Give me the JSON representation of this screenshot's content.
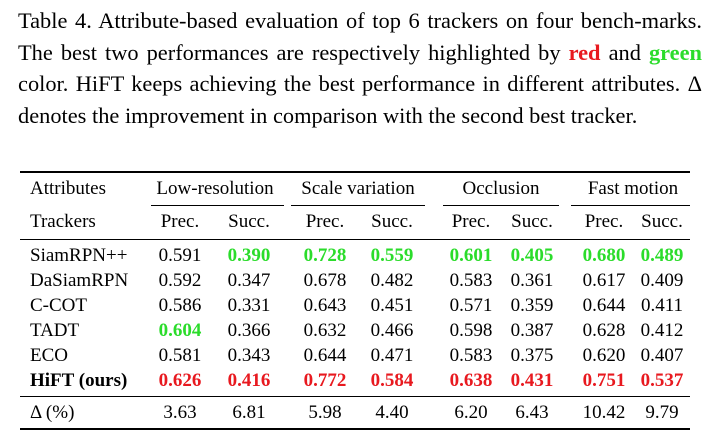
{
  "caption": {
    "p1": "Table 4. Attribute-based evaluation of top 6 trackers on four bench-marks. The best two performances are respectively highlighted by ",
    "red_word": "red",
    "and_word": " and ",
    "green_word": "green",
    "p2": " color. HiFT keeps achieving the best performance in different attributes. Δ denotes the improvement in comparison with the second best tracker."
  },
  "header": {
    "attributes_label": "Attributes",
    "trackers_label": "Trackers",
    "groups": [
      "Low-resolution",
      "Scale variation",
      "Occlusion",
      "Fast motion"
    ],
    "subcols": [
      "Prec.",
      "Succ.",
      "Prec.",
      "Succ.",
      "Prec.",
      "Succ.",
      "Prec.",
      "Succ."
    ]
  },
  "colors": {
    "best": "#e8191f",
    "second": "#2bdc2b"
  },
  "rows": [
    {
      "name": "SiamRPN++",
      "values": [
        "0.591",
        "0.390",
        "0.728",
        "0.559",
        "0.601",
        "0.405",
        "0.680",
        "0.489"
      ],
      "hl": [
        "",
        "green",
        "green",
        "green",
        "green",
        "green",
        "green",
        "green"
      ]
    },
    {
      "name": "DaSiamRPN",
      "values": [
        "0.592",
        "0.347",
        "0.678",
        "0.482",
        "0.583",
        "0.361",
        "0.617",
        "0.409"
      ],
      "hl": [
        "",
        "",
        "",
        "",
        "",
        "",
        "",
        ""
      ]
    },
    {
      "name": "C-COT",
      "values": [
        "0.586",
        "0.331",
        "0.643",
        "0.451",
        "0.571",
        "0.359",
        "0.644",
        "0.411"
      ],
      "hl": [
        "",
        "",
        "",
        "",
        "",
        "",
        "",
        ""
      ]
    },
    {
      "name": "TADT",
      "values": [
        "0.604",
        "0.366",
        "0.632",
        "0.466",
        "0.598",
        "0.387",
        "0.628",
        "0.412"
      ],
      "hl": [
        "green",
        "",
        "",
        "",
        "",
        "",
        "",
        ""
      ]
    },
    {
      "name": "ECO",
      "values": [
        "0.581",
        "0.343",
        "0.644",
        "0.471",
        "0.583",
        "0.375",
        "0.620",
        "0.407"
      ],
      "hl": [
        "",
        "",
        "",
        "",
        "",
        "",
        "",
        ""
      ]
    },
    {
      "name": "HiFT (ours)",
      "values": [
        "0.626",
        "0.416",
        "0.772",
        "0.584",
        "0.638",
        "0.431",
        "0.751",
        "0.537"
      ],
      "hl": [
        "red",
        "red",
        "red",
        "red",
        "red",
        "red",
        "red",
        "red"
      ],
      "bold_name": true
    }
  ],
  "delta": {
    "label": "Δ (%)",
    "values": [
      "3.63",
      "6.81",
      "5.98",
      "4.40",
      "6.20",
      "6.43",
      "10.42",
      "9.79"
    ]
  }
}
